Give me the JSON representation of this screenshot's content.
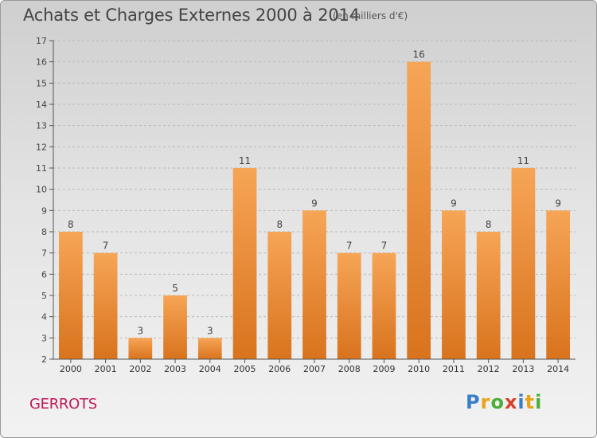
{
  "header": {
    "title": "Achats et Charges Externes 2000 à 2014",
    "unit": "(en milliers d'€)"
  },
  "footer": {
    "city": "GERROTS",
    "brand_letters": [
      "P",
      "r",
      "o",
      "x",
      "i",
      "t",
      "i"
    ],
    "brand_colors": [
      "#3a7fc6",
      "#e8a317",
      "#4cae3a",
      "#d8402a",
      "#3a7fc6",
      "#e8a317",
      "#4cae3a"
    ]
  },
  "chart_data": {
    "type": "bar",
    "title": "Achats et Charges Externes 2000 à 2014",
    "subtitle": "(en milliers d'€)",
    "xlabel": "",
    "ylabel": "",
    "categories": [
      "2000",
      "2001",
      "2002",
      "2003",
      "2004",
      "2005",
      "2006",
      "2007",
      "2008",
      "2009",
      "2010",
      "2011",
      "2012",
      "2013",
      "2014"
    ],
    "values": [
      8,
      7,
      3,
      5,
      3,
      11,
      8,
      9,
      7,
      7,
      16,
      9,
      8,
      11,
      9
    ],
    "ylim": [
      2,
      17
    ],
    "yticks": [
      2,
      3,
      4,
      5,
      6,
      7,
      8,
      9,
      10,
      11,
      12,
      13,
      14,
      15,
      16,
      17
    ],
    "grid": "horizontal dashed",
    "bar_color_top": "#f6a556",
    "bar_color_bottom": "#d9731d"
  }
}
